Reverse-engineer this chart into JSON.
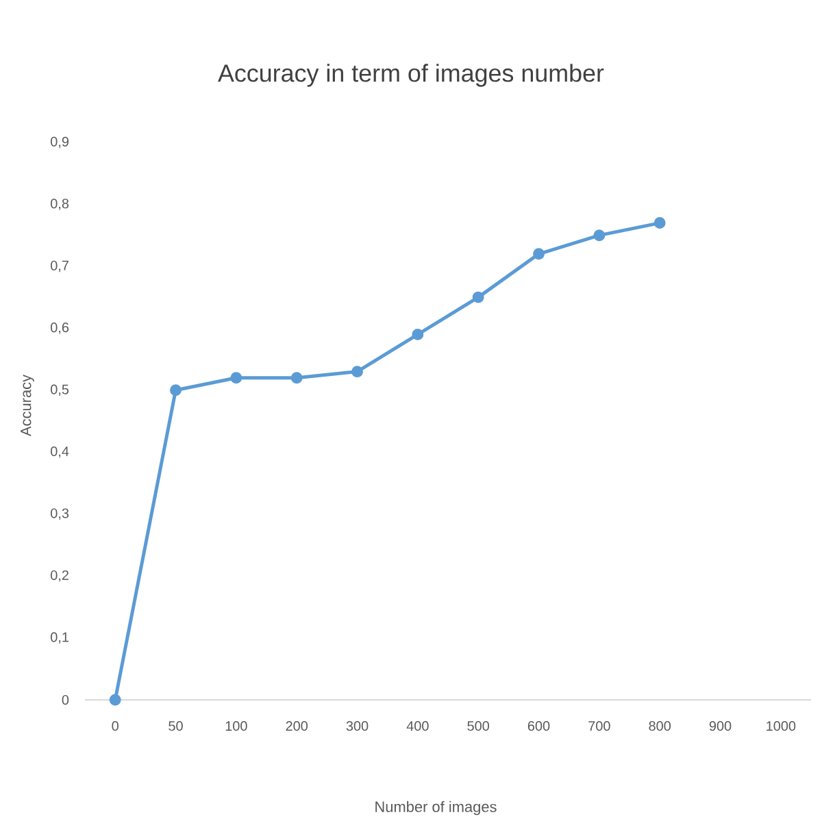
{
  "chart_data": {
    "type": "line",
    "title": "Accuracy in term of images number",
    "xlabel": "Number of images",
    "ylabel": "Accuracy",
    "categories": [
      "0",
      "50",
      "100",
      "200",
      "300",
      "400",
      "500",
      "600",
      "700",
      "800",
      "900",
      "1000"
    ],
    "series": [
      {
        "color": "#5b9bd5",
        "values": [
          0,
          0.5,
          0.52,
          0.52,
          0.53,
          0.59,
          0.65,
          0.72,
          0.75,
          0.77,
          null,
          null
        ]
      }
    ],
    "ylim": [
      0,
      0.9
    ],
    "yticks": [
      0,
      {
        "value": 0.1,
        "label": "0,1"
      },
      {
        "value": 0.2,
        "label": "0,2"
      },
      {
        "value": 0.3,
        "label": "0,3"
      },
      {
        "value": 0.4,
        "label": "0,4"
      },
      {
        "value": 0.5,
        "label": "0,5"
      },
      {
        "value": 0.6,
        "label": "0,6"
      },
      {
        "value": 0.7,
        "label": "0,7"
      },
      {
        "value": 0.8,
        "label": "0,8"
      },
      {
        "value": 0.9,
        "label": "0,9"
      }
    ],
    "grid": false,
    "marker": "circle",
    "line_style": "solid"
  }
}
